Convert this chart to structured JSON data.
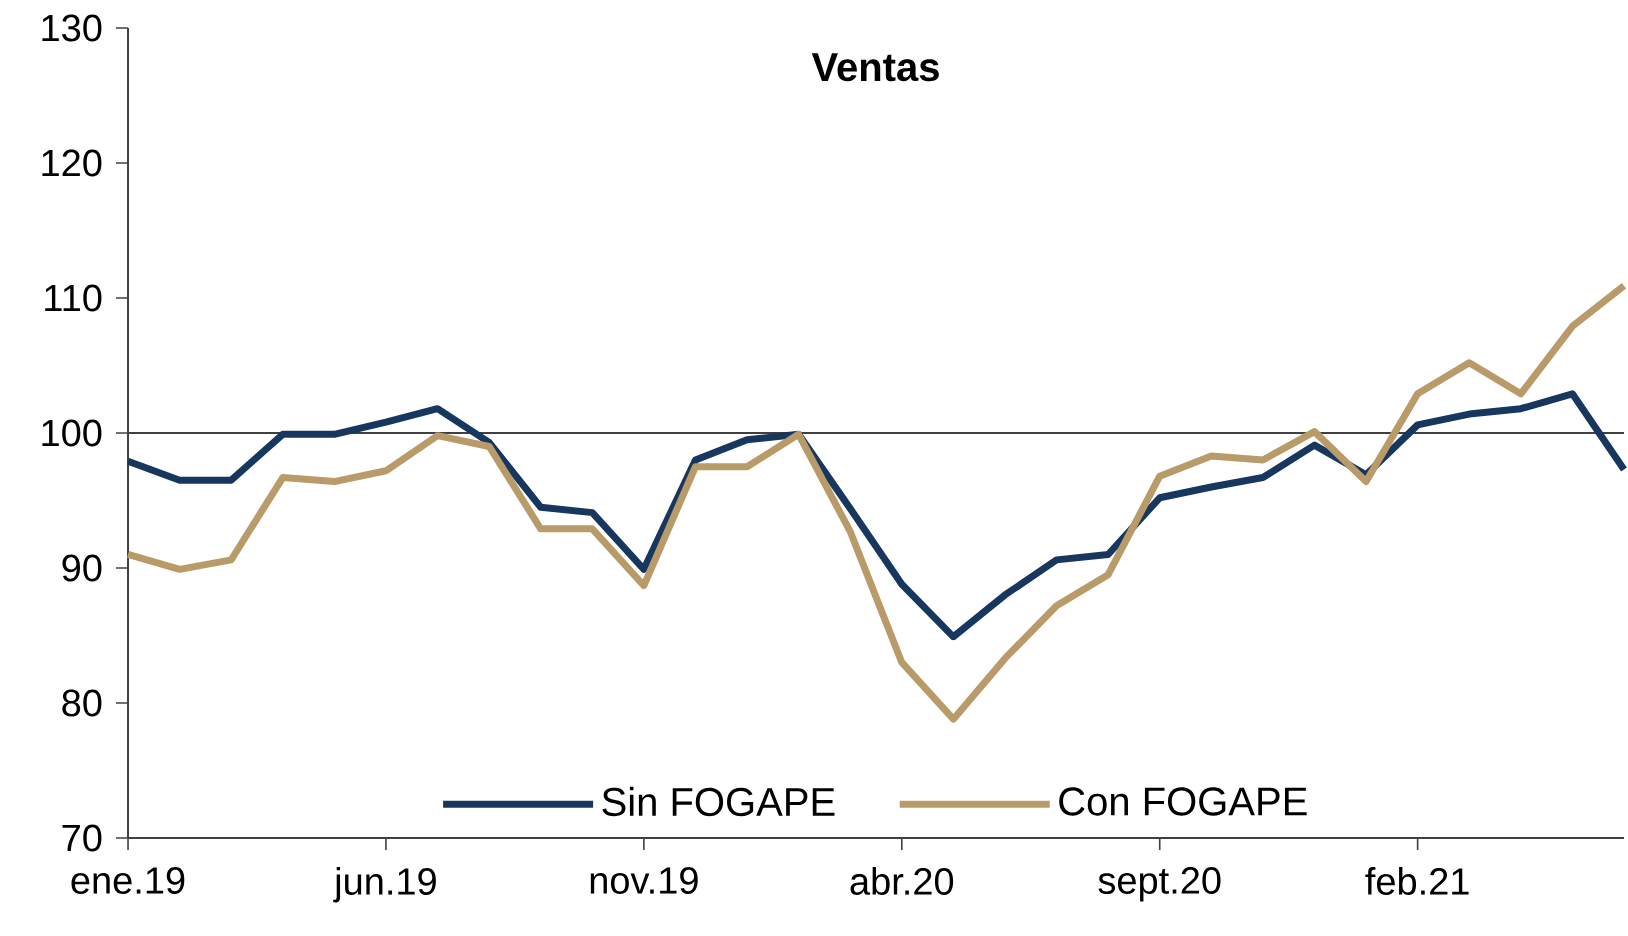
{
  "chart_data": {
    "type": "line",
    "title": "Ventas",
    "categories": [
      "ene.19",
      null,
      null,
      null,
      null,
      "jun.19",
      null,
      null,
      null,
      null,
      "nov.19",
      null,
      null,
      null,
      null,
      "abr.20",
      null,
      null,
      null,
      null,
      "sept.20",
      null,
      null,
      null,
      null,
      "feb.21",
      null,
      null,
      null,
      null
    ],
    "series": [
      {
        "name": "Sin FOGAPE",
        "color": "#17375e",
        "values": [
          97.9,
          96.5,
          96.5,
          99.9,
          99.9,
          100.8,
          101.8,
          99.3,
          94.5,
          94.1,
          89.9,
          98.0,
          99.5,
          99.9,
          94.4,
          88.8,
          84.9,
          88.0,
          90.6,
          91.0,
          95.2,
          96.0,
          96.7,
          99.1,
          96.9,
          100.6,
          101.4,
          101.8,
          102.9,
          97.3
        ]
      },
      {
        "name": "Con FOGAPE",
        "color": "#b89b68",
        "values": [
          91.0,
          89.9,
          90.6,
          96.7,
          96.4,
          97.2,
          99.8,
          99.0,
          92.9,
          92.9,
          88.7,
          97.5,
          97.5,
          99.9,
          92.7,
          83.0,
          78.8,
          83.3,
          87.2,
          89.5,
          96.8,
          98.3,
          98.0,
          100.1,
          96.4,
          102.9,
          105.2,
          102.9,
          107.9,
          110.9
        ]
      }
    ],
    "ylim": [
      70,
      130
    ],
    "yticks": [
      70,
      80,
      90,
      100,
      110,
      120,
      130
    ],
    "ref_lines": [
      {
        "axis": "y",
        "value": 100,
        "color": "#404040"
      }
    ],
    "grid": false,
    "legend": "bottom",
    "marker": "none",
    "line_style": "solid"
  }
}
